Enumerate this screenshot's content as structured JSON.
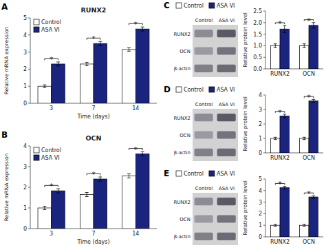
{
  "chart_data": [
    {
      "type": "bar",
      "title": "RUNX2",
      "xlabel": "Time (days)",
      "ylabel": "Relative mRNA expression",
      "categories": [
        3,
        7,
        14
      ],
      "series": [
        {
          "name": "Control",
          "color": "#ffffff",
          "values": [
            1.0,
            2.3,
            3.15
          ],
          "errors": [
            0.08,
            0.1,
            0.1
          ]
        },
        {
          "name": "ASA VI",
          "color": "#1a237e",
          "values": [
            2.3,
            3.5,
            4.35
          ],
          "errors": [
            0.12,
            0.12,
            0.12
          ]
        }
      ],
      "ylim": [
        0,
        5
      ],
      "yticks": [
        0,
        1,
        2,
        3,
        4,
        5
      ],
      "legend": "upper left",
      "annotations": [
        "A",
        "*",
        "*",
        "*"
      ]
    },
    {
      "type": "bar",
      "title": "OCN",
      "xlabel": "Time (days)",
      "ylabel": "Relative mRNA expression",
      "categories": [
        3,
        7,
        14
      ],
      "series": [
        {
          "name": "Control",
          "color": "#ffffff",
          "values": [
            1.0,
            1.65,
            2.55
          ],
          "errors": [
            0.08,
            0.1,
            0.1
          ]
        },
        {
          "name": "ASA VI",
          "color": "#1a237e",
          "values": [
            1.83,
            2.4,
            3.62
          ],
          "errors": [
            0.1,
            0.1,
            0.1
          ]
        }
      ],
      "ylim": [
        0,
        4
      ],
      "yticks": [
        0,
        1,
        2,
        3,
        4
      ],
      "legend": "upper left",
      "annotations": [
        "B",
        "*",
        "*",
        "*"
      ]
    },
    {
      "type": "bar",
      "ylabel": "Relative protein level",
      "categories": [
        "RUNX2",
        "OCN"
      ],
      "series": [
        {
          "name": "Control",
          "color": "#ffffff",
          "values": [
            1.0,
            1.0
          ],
          "errors": [
            0.08,
            0.08
          ]
        },
        {
          "name": "ASA VI",
          "color": "#1a237e",
          "values": [
            1.72,
            1.88
          ],
          "errors": [
            0.15,
            0.12
          ]
        }
      ],
      "ylim": [
        0,
        2.5
      ],
      "yticks": [
        {
          "value": 0,
          "label": "0.0"
        },
        0.5,
        {
          "value": 1,
          "label": "1.0"
        },
        1.5,
        {
          "value": 2,
          "label": "2.0"
        },
        2.5
      ],
      "legend": "upper left",
      "annotations": [
        "C",
        "*",
        "*",
        "RUNX2",
        "OCN",
        "β-actin",
        "Control",
        "ASA VI"
      ]
    },
    {
      "type": "bar",
      "ylabel": "Relative protein level",
      "categories": [
        "RUNX2",
        "OCN"
      ],
      "series": [
        {
          "name": "Control",
          "color": "#ffffff",
          "values": [
            1.0,
            1.0
          ],
          "errors": [
            0.08,
            0.08
          ]
        },
        {
          "name": "ASA VI",
          "color": "#1a237e",
          "values": [
            2.55,
            3.6
          ],
          "errors": [
            0.12,
            0.1
          ]
        }
      ],
      "ylim": [
        0,
        4
      ],
      "yticks": [
        0,
        1,
        2,
        3,
        4
      ],
      "legend": "upper left",
      "annotations": [
        "D",
        "*",
        "*",
        "RUNX2",
        "OCN",
        "β-actin",
        "Control",
        "ASA VI"
      ]
    },
    {
      "type": "bar",
      "ylabel": "Relative protein level",
      "categories": [
        "RUNX2",
        "OCN"
      ],
      "series": [
        {
          "name": "Control",
          "color": "#ffffff",
          "values": [
            1.0,
            1.0
          ],
          "errors": [
            0.08,
            0.08
          ]
        },
        {
          "name": "ASA VI",
          "color": "#1a237e",
          "values": [
            4.25,
            3.45
          ],
          "errors": [
            0.12,
            0.1
          ]
        }
      ],
      "ylim": [
        0,
        5
      ],
      "yticks": [
        0,
        1,
        2,
        3,
        4,
        5
      ],
      "legend": "upper left",
      "annotations": [
        "E",
        "*",
        "*",
        "RUNX2",
        "OCN",
        "β-actin",
        "Control",
        "ASA VI"
      ]
    }
  ]
}
